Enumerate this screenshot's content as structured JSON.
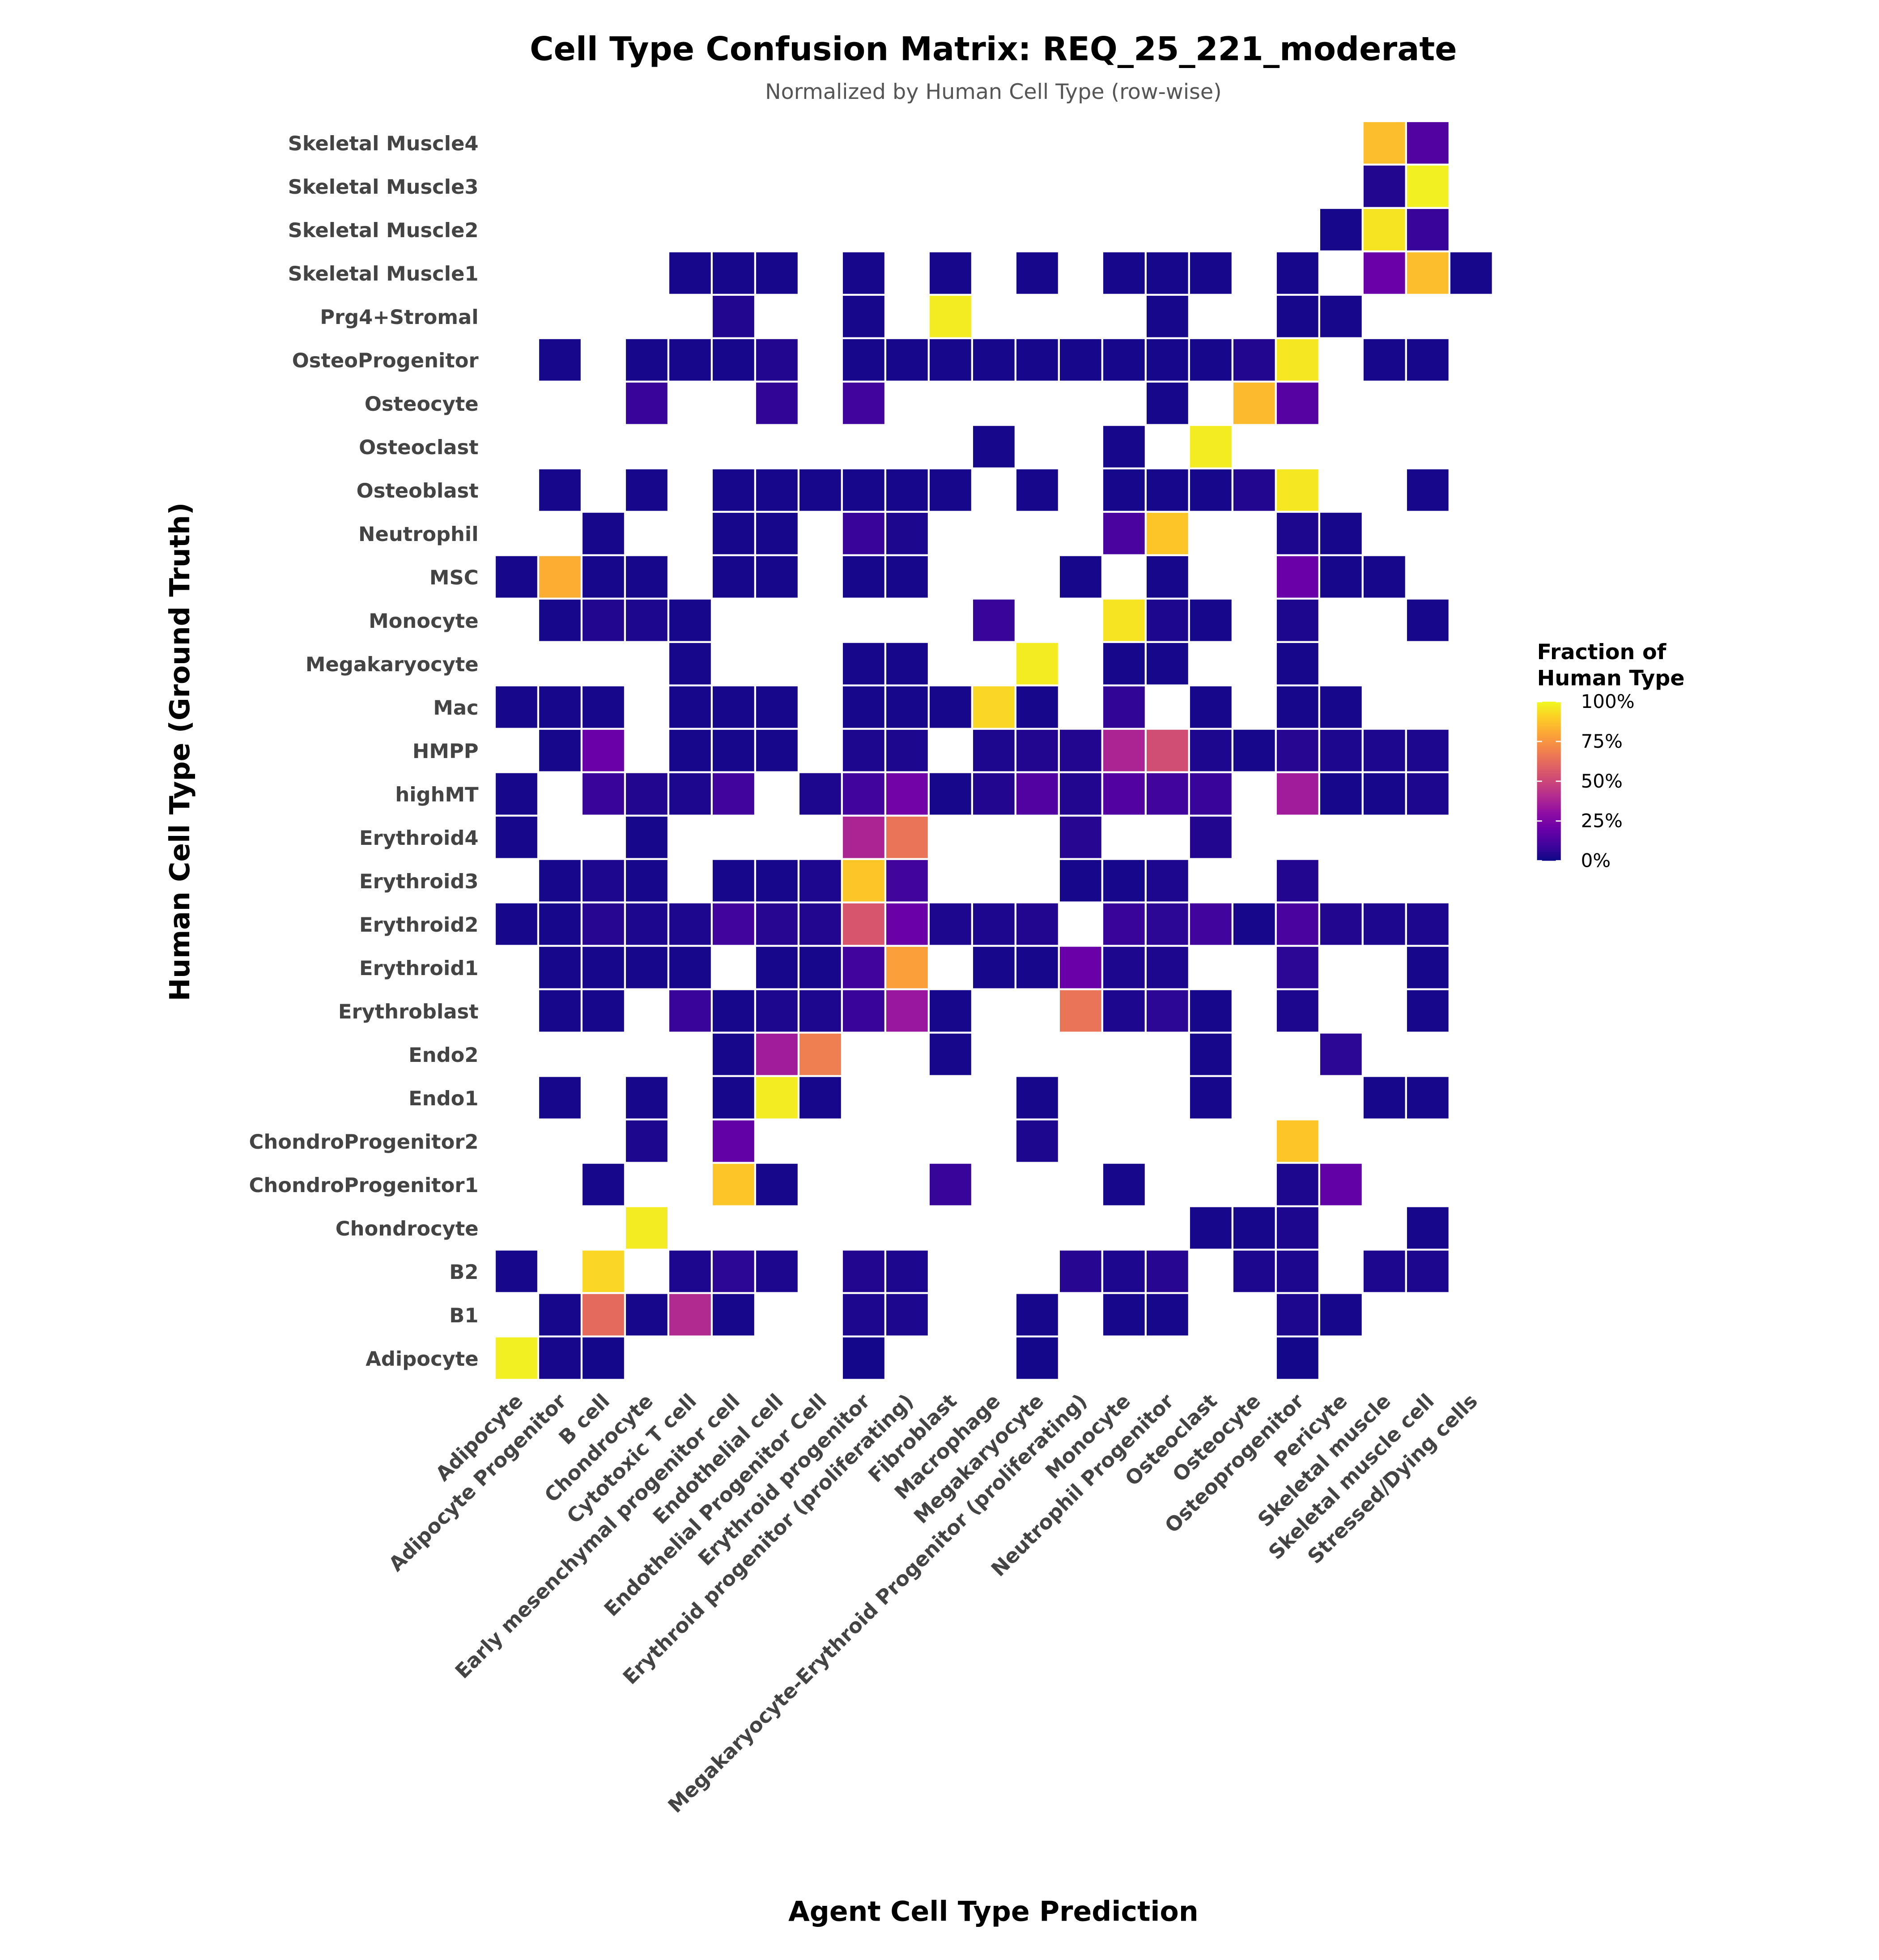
{
  "chart_data": {
    "type": "heatmap",
    "title": "Cell Type Confusion Matrix: REQ_25_221_moderate",
    "subtitle": "Normalized by Human Cell Type (row-wise)",
    "x_label": "Agent Cell Type Prediction",
    "y_label": "Human Cell Type (Ground Truth)",
    "colormap": "plasma",
    "legend_title": [
      "Fraction of",
      "Human Type"
    ],
    "clim": [
      0,
      100
    ],
    "cticks": [
      {
        "value": 0,
        "label": "0%"
      },
      {
        "value": 25,
        "label": "25%"
      },
      {
        "value": 50,
        "label": "50%"
      },
      {
        "value": 75,
        "label": "75%"
      },
      {
        "value": 100,
        "label": "100%"
      }
    ],
    "x_categories": [
      "Adipocyte",
      "Adipocyte Progenitor",
      "B cell",
      "Chondrocyte",
      "Cytotoxic T cell",
      "Early mesenchymal progenitor cell",
      "Endothelial cell",
      "Endothelial Progenitor Cell",
      "Erythroid progenitor",
      "Erythroid progenitor (proliferating)",
      "Fibroblast",
      "Macrophage",
      "Megakaryocyte",
      "Megakaryocyte-Erythroid Progenitor (proliferating)",
      "Monocyte",
      "Neutrophil Progenitor",
      "Osteoclast",
      "Osteocyte",
      "Osteoprogenitor",
      "Pericyte",
      "Skeletal muscle",
      "Skeletal muscle cell",
      "Stressed/Dying cells"
    ],
    "y_categories": [
      "Adipocyte",
      "B1",
      "B2",
      "Chondrocyte",
      "ChondroProgenitor1",
      "ChondroProgenitor2",
      "Endo1",
      "Endo2",
      "Erythroblast",
      "Erythroid1",
      "Erythroid2",
      "Erythroid3",
      "Erythroid4",
      "highMT",
      "HMPP",
      "Mac",
      "Megakaryocyte",
      "Monocyte",
      "MSC",
      "Neutrophil",
      "Osteoblast",
      "Osteoclast",
      "Osteocyte",
      "OsteoProgenitor",
      "Prg4+Stromal",
      "Skeletal Muscle1",
      "Skeletal Muscle2",
      "Skeletal Muscle3",
      "Skeletal Muscle4"
    ],
    "values": [
      [
        98,
        2,
        1,
        null,
        null,
        null,
        null,
        null,
        1,
        null,
        null,
        null,
        1,
        null,
        null,
        null,
        null,
        null,
        1,
        null,
        null,
        null,
        null
      ],
      [
        null,
        2,
        62,
        2,
        40,
        2,
        null,
        null,
        3,
        3,
        null,
        null,
        2,
        null,
        2,
        2,
        null,
        null,
        3,
        2,
        null,
        null,
        null
      ],
      [
        2,
        null,
        92,
        null,
        3,
        6,
        3,
        null,
        4,
        3,
        null,
        null,
        null,
        5,
        3,
        5,
        null,
        3,
        3,
        null,
        3,
        3,
        null
      ],
      [
        null,
        null,
        null,
        97,
        null,
        null,
        null,
        null,
        null,
        null,
        null,
        null,
        null,
        null,
        null,
        null,
        2,
        2,
        3,
        null,
        null,
        2,
        null
      ],
      [
        null,
        null,
        2,
        null,
        null,
        88,
        2,
        null,
        null,
        null,
        8,
        null,
        null,
        null,
        2,
        null,
        null,
        null,
        3,
        18,
        null,
        null,
        null
      ],
      [
        null,
        null,
        null,
        3,
        null,
        18,
        null,
        null,
        null,
        null,
        null,
        null,
        3,
        null,
        null,
        null,
        null,
        null,
        88,
        null,
        null,
        null,
        null
      ],
      [
        null,
        2,
        null,
        2,
        null,
        2,
        97,
        2,
        null,
        null,
        null,
        null,
        2,
        null,
        null,
        null,
        2,
        null,
        null,
        null,
        2,
        2,
        null
      ],
      [
        null,
        null,
        null,
        null,
        null,
        2,
        35,
        68,
        null,
        null,
        2,
        null,
        null,
        null,
        null,
        null,
        2,
        null,
        null,
        6,
        null,
        null,
        null
      ],
      [
        null,
        2,
        2,
        null,
        8,
        2,
        3,
        3,
        8,
        33,
        2,
        null,
        null,
        65,
        3,
        6,
        2,
        null,
        3,
        null,
        null,
        2,
        null
      ],
      [
        null,
        2,
        2,
        2,
        2,
        null,
        2,
        2,
        10,
        78,
        null,
        2,
        2,
        20,
        3,
        3,
        null,
        null,
        6,
        null,
        null,
        2,
        null
      ],
      [
        2,
        2,
        5,
        3,
        3,
        10,
        5,
        4,
        55,
        20,
        3,
        3,
        4,
        null,
        8,
        6,
        10,
        2,
        12,
        4,
        3,
        3,
        null
      ],
      [
        null,
        2,
        3,
        2,
        null,
        2,
        2,
        3,
        88,
        10,
        null,
        null,
        null,
        2,
        2,
        3,
        null,
        null,
        4,
        null,
        null,
        null,
        null
      ],
      [
        2,
        null,
        null,
        2,
        null,
        null,
        null,
        null,
        38,
        65,
        null,
        null,
        null,
        5,
        null,
        null,
        4,
        null,
        null,
        null,
        null,
        null,
        null
      ],
      [
        2,
        null,
        8,
        4,
        3,
        10,
        null,
        3,
        10,
        22,
        2,
        4,
        14,
        4,
        14,
        10,
        8,
        null,
        35,
        2,
        2,
        3,
        null
      ],
      [
        null,
        2,
        20,
        null,
        2,
        2,
        2,
        null,
        3,
        3,
        null,
        3,
        4,
        4,
        38,
        52,
        3,
        2,
        5,
        3,
        3,
        3,
        null
      ],
      [
        2,
        2,
        2,
        null,
        2,
        2,
        2,
        null,
        2,
        2,
        2,
        92,
        2,
        null,
        7,
        null,
        2,
        null,
        2,
        2,
        null,
        null,
        null
      ],
      [
        null,
        null,
        null,
        null,
        2,
        null,
        null,
        null,
        2,
        2,
        null,
        null,
        97,
        null,
        2,
        2,
        null,
        null,
        2,
        null,
        null,
        null,
        null
      ],
      [
        null,
        2,
        4,
        3,
        2,
        null,
        null,
        null,
        null,
        null,
        null,
        8,
        null,
        null,
        95,
        3,
        2,
        null,
        3,
        null,
        null,
        2,
        null
      ],
      [
        2,
        82,
        2,
        2,
        null,
        2,
        2,
        null,
        2,
        2,
        null,
        null,
        null,
        2,
        null,
        2,
        null,
        null,
        20,
        2,
        2,
        null,
        null
      ],
      [
        null,
        null,
        2,
        null,
        null,
        2,
        2,
        null,
        8,
        3,
        null,
        null,
        null,
        null,
        12,
        88,
        null,
        null,
        3,
        2,
        null,
        null,
        null
      ],
      [
        null,
        2,
        null,
        2,
        null,
        2,
        2,
        2,
        2,
        2,
        2,
        null,
        2,
        null,
        2,
        2,
        2,
        4,
        96,
        null,
        null,
        2,
        null
      ],
      [
        null,
        null,
        null,
        null,
        null,
        null,
        null,
        null,
        null,
        null,
        null,
        2,
        null,
        null,
        2,
        null,
        97,
        null,
        null,
        null,
        null,
        null,
        null
      ],
      [
        null,
        null,
        null,
        8,
        null,
        null,
        7,
        null,
        10,
        null,
        null,
        null,
        null,
        null,
        null,
        2,
        null,
        85,
        15,
        null,
        null,
        null,
        null
      ],
      [
        null,
        2,
        null,
        2,
        2,
        2,
        4,
        null,
        2,
        2,
        2,
        2,
        2,
        2,
        2,
        2,
        2,
        4,
        96,
        null,
        2,
        2,
        null
      ],
      [
        null,
        null,
        null,
        null,
        null,
        4,
        null,
        null,
        2,
        null,
        97,
        null,
        null,
        null,
        null,
        2,
        null,
        null,
        2,
        2,
        null,
        null,
        null
      ],
      [
        null,
        null,
        null,
        null,
        2,
        2,
        2,
        null,
        2,
        null,
        2,
        null,
        2,
        null,
        2,
        2,
        2,
        null,
        2,
        null,
        20,
        86,
        2
      ],
      [
        null,
        null,
        null,
        null,
        null,
        null,
        null,
        null,
        null,
        null,
        null,
        null,
        null,
        null,
        null,
        null,
        null,
        null,
        null,
        2,
        95,
        8,
        null
      ],
      [
        null,
        null,
        null,
        null,
        null,
        null,
        null,
        null,
        null,
        null,
        null,
        null,
        null,
        null,
        null,
        null,
        null,
        null,
        null,
        null,
        4,
        98,
        null
      ],
      [
        null,
        null,
        null,
        null,
        null,
        null,
        null,
        null,
        null,
        null,
        null,
        null,
        null,
        null,
        null,
        null,
        null,
        null,
        null,
        null,
        86,
        14,
        null
      ]
    ]
  }
}
